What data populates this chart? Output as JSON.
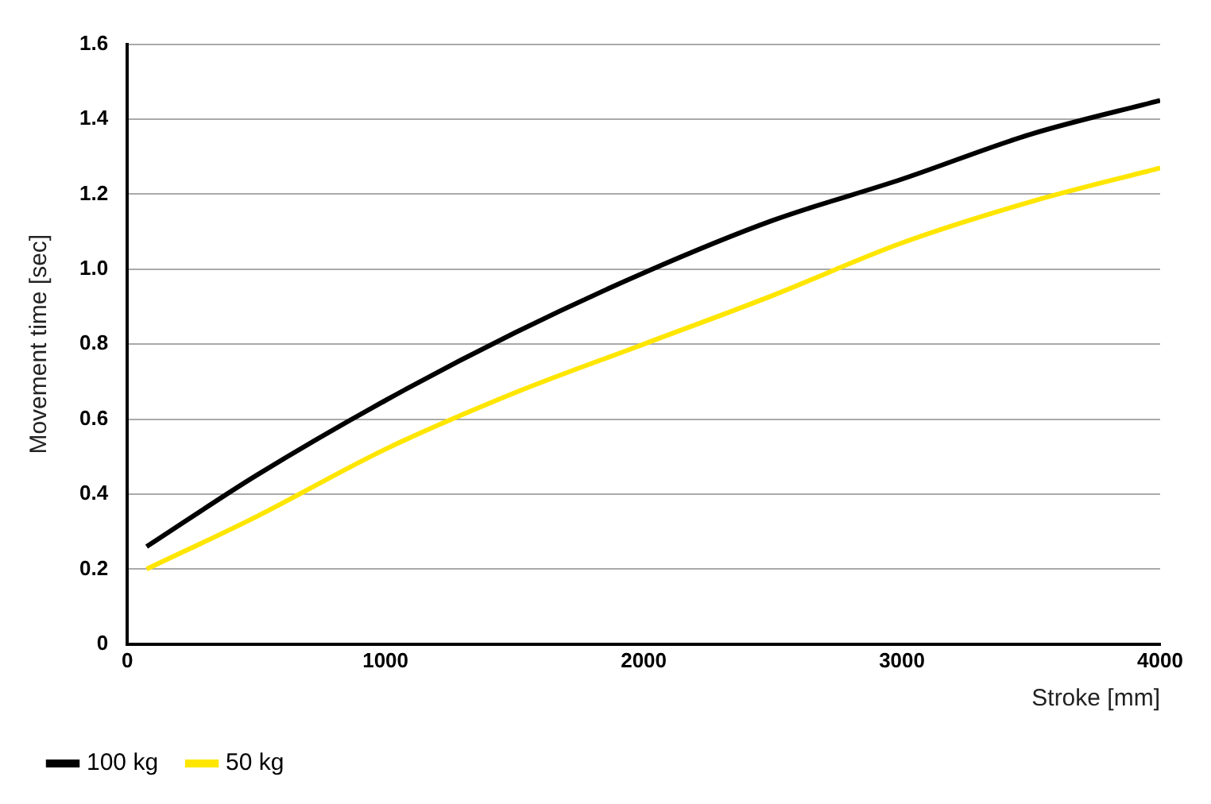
{
  "chart_data": {
    "type": "line",
    "xlabel": "Stroke [mm]",
    "ylabel": "Movement time [sec]",
    "x": [
      75,
      500,
      1000,
      1500,
      2000,
      2500,
      3000,
      3500,
      4000
    ],
    "series": [
      {
        "name": "100 kg",
        "color": "#000000",
        "values": [
          0.26,
          0.45,
          0.65,
          0.83,
          0.99,
          1.13,
          1.24,
          1.36,
          1.45
        ]
      },
      {
        "name": "50 kg",
        "color": "#ffe600",
        "values": [
          0.2,
          0.34,
          0.52,
          0.67,
          0.8,
          0.93,
          1.07,
          1.18,
          1.27
        ]
      }
    ],
    "xlim": [
      0,
      4000
    ],
    "xticks": [
      0,
      1000,
      2000,
      3000,
      4000
    ],
    "ylim": [
      0,
      1.6
    ],
    "yticks": [
      0,
      {
        "value": 0.2,
        "label": "0.2"
      },
      {
        "value": 0.4,
        "label": "0.4"
      },
      {
        "value": 0.6,
        "label": "0.6"
      },
      {
        "value": 0.8,
        "label": "0.8"
      },
      {
        "value": 1,
        "label": "1.0"
      },
      {
        "value": 1.2,
        "label": "1.2"
      },
      {
        "value": 1.4,
        "label": "1.4"
      },
      {
        "value": 1.6,
        "label": "1.6"
      }
    ],
    "grid": "y",
    "legend": "bottom left",
    "marker": "none",
    "line_style": "solid"
  }
}
